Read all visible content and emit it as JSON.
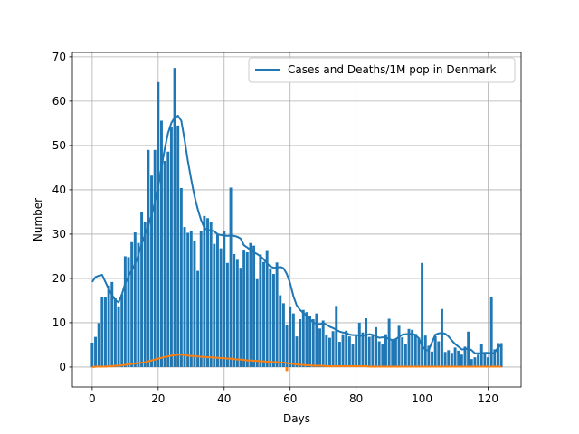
{
  "chart_data": {
    "type": "bar",
    "xlabel": "Days",
    "ylabel": "Number",
    "xlim": [
      -6,
      130
    ],
    "ylim": [
      -4.5,
      71
    ],
    "xticks": [
      0,
      20,
      40,
      60,
      80,
      100,
      120
    ],
    "yticks": [
      0,
      10,
      20,
      30,
      40,
      50,
      60,
      70
    ],
    "grid": true,
    "legend": {
      "position": "top-right",
      "entries": [
        "Cases and Deaths/1M pop in Denmark"
      ]
    },
    "colors": {
      "cases": "#1f77b4",
      "deaths": "#ff7f0e",
      "grid": "#b0b0b0"
    },
    "x": [
      0,
      1,
      2,
      3,
      4,
      5,
      6,
      7,
      8,
      9,
      10,
      11,
      12,
      13,
      14,
      15,
      16,
      17,
      18,
      19,
      20,
      21,
      22,
      23,
      24,
      25,
      26,
      27,
      28,
      29,
      30,
      31,
      32,
      33,
      34,
      35,
      36,
      37,
      38,
      39,
      40,
      41,
      42,
      43,
      44,
      45,
      46,
      47,
      48,
      49,
      50,
      51,
      52,
      53,
      54,
      55,
      56,
      57,
      58,
      59,
      60,
      61,
      62,
      63,
      64,
      65,
      66,
      67,
      68,
      69,
      70,
      71,
      72,
      73,
      74,
      75,
      76,
      77,
      78,
      79,
      80,
      81,
      82,
      83,
      84,
      85,
      86,
      87,
      88,
      89,
      90,
      91,
      92,
      93,
      94,
      95,
      96,
      97,
      98,
      99,
      100,
      101,
      102,
      103,
      104,
      105,
      106,
      107,
      108,
      109,
      110,
      111,
      112,
      113,
      114,
      115,
      116,
      117,
      118,
      119,
      120,
      121,
      122,
      123,
      124
    ],
    "series": [
      {
        "kind": "bar",
        "values": [
          5.5,
          6.8,
          9.9,
          15.9,
          15.7,
          18.4,
          19.2,
          15.5,
          13.7,
          16.4,
          25.0,
          24.8,
          28.2,
          30.4,
          28.0,
          35.0,
          32.8,
          49.0,
          43.2,
          49.0,
          64.3,
          55.6,
          46.5,
          48.6,
          54.1,
          67.5,
          54.5,
          40.4,
          31.6,
          30.3,
          30.7,
          28.4,
          21.7,
          30.8,
          34.1,
          33.6,
          32.7,
          27.8,
          29.9,
          26.8,
          30.7,
          23.5,
          40.5,
          25.5,
          24.2,
          22.4,
          26.3,
          25.9,
          28.0,
          27.4,
          19.8,
          25.4,
          23.7,
          26.2,
          22.3,
          21.0,
          23.6,
          16.2,
          14.4,
          9.4,
          13.7,
          12.1,
          6.9,
          10.8,
          12.9,
          12.4,
          11.6,
          10.8,
          12.1,
          8.7,
          10.5,
          7.2,
          6.6,
          8.1,
          13.8,
          5.7,
          7.4,
          8.2,
          6.9,
          5.2,
          7.0,
          10.0,
          7.8,
          11.0,
          6.8,
          7.1,
          9.0,
          5.8,
          5.1,
          7.4,
          10.9,
          6.0,
          6.3,
          9.3,
          6.7,
          5.2,
          8.6,
          8.4,
          7.5,
          6.6,
          23.5,
          7.1,
          4.8,
          3.5,
          7.0,
          5.8,
          13.1,
          3.4,
          3.8,
          3.2,
          4.4,
          3.7,
          2.8,
          4.6,
          8.0,
          1.8,
          2.2,
          2.8,
          5.2,
          2.9,
          2.2,
          15.8,
          4.0,
          5.4,
          5.4
        ]
      },
      {
        "kind": "line",
        "values": [
          19.2,
          20.3,
          20.6,
          20.8,
          19.2,
          17.6,
          16.3,
          15.1,
          14.6,
          16.4,
          18.9,
          20.5,
          21.8,
          23.3,
          25.3,
          27.8,
          29.9,
          31.8,
          34.3,
          37.2,
          40.6,
          45.1,
          49.3,
          52.8,
          55.1,
          56.3,
          56.7,
          55.6,
          51.3,
          46.5,
          42.4,
          38.6,
          35.6,
          33.2,
          31.4,
          30.9,
          30.9,
          30.6,
          30.0,
          29.8,
          29.7,
          29.6,
          29.7,
          29.6,
          29.4,
          29.0,
          27.5,
          27.0,
          26.4,
          25.9,
          25.5,
          25.0,
          24.3,
          23.4,
          22.7,
          22.4,
          22.4,
          22.6,
          22.3,
          21.0,
          18.9,
          16.0,
          13.9,
          12.9,
          12.2,
          11.6,
          10.8,
          10.1,
          9.7,
          9.7,
          9.9,
          9.6,
          9.1,
          8.8,
          8.4,
          8.0,
          7.8,
          7.7,
          7.3,
          7.2,
          7.2,
          7.1,
          7.0,
          7.2,
          7.4,
          7.3,
          6.9,
          6.6,
          6.7,
          6.7,
          6.3,
          6.1,
          6.3,
          6.8,
          7.3,
          7.4,
          7.4,
          7.5,
          7.2,
          6.5,
          4.8,
          3.8,
          3.8,
          5.6,
          7.3,
          7.6,
          7.7,
          7.5,
          6.9,
          6.0,
          5.2,
          4.6,
          4.0,
          4.0,
          4.2,
          3.8,
          3.1,
          3.1,
          3.1,
          3.2,
          3.2,
          3.1,
          3.2,
          4.4,
          5.1
        ]
      },
      {
        "kind": "bar",
        "values": [
          0.0,
          0.0,
          0.0,
          0.2,
          0.0,
          0.3,
          0.0,
          0.2,
          0.2,
          0.5,
          0.3,
          1.0,
          0.7,
          0.9,
          0.7,
          1.2,
          0.9,
          1.4,
          1.2,
          2.0,
          1.9,
          3.1,
          2.2,
          2.5,
          2.9,
          2.5,
          3.1,
          2.8,
          2.9,
          2.5,
          2.3,
          2.9,
          2.1,
          2.4,
          2.7,
          2.1,
          2.2,
          1.9,
          1.9,
          2.3,
          1.8,
          1.7,
          2.4,
          1.8,
          1.5,
          1.6,
          1.4,
          1.5,
          1.2,
          1.4,
          1.2,
          1.3,
          1.0,
          1.3,
          1.2,
          1.5,
          0.8,
          1.1,
          1.0,
          -0.9,
          0.9,
          0.7,
          0.5,
          0.4,
          0.6,
          0.3,
          0.4,
          0.3,
          0.4,
          0.2,
          0.3,
          0.2,
          0.2,
          0.1,
          0.3,
          0.2,
          0.2,
          0.1,
          0.2,
          0.1,
          0.2,
          0.3,
          0.1,
          0.2,
          0.1,
          0.2,
          0.1,
          0.1,
          0.2,
          0.1,
          0.1,
          0.1,
          0.1,
          0.2,
          0.0,
          0.1,
          0.1,
          0.0,
          0.1,
          0.1,
          0.0,
          0.1,
          0.0,
          0.0,
          0.1,
          0.0,
          0.0,
          0.1,
          0.0,
          0.0,
          0.0,
          0.1,
          0.0,
          0.0,
          0.0,
          0.0,
          0.1,
          0.0,
          0.0,
          0.0,
          0.0,
          0.0,
          0.0,
          0.0,
          0.0
        ]
      },
      {
        "kind": "line",
        "values": [
          0.0,
          0.1,
          0.1,
          0.1,
          0.1,
          0.2,
          0.2,
          0.3,
          0.3,
          0.4,
          0.5,
          0.6,
          0.7,
          0.8,
          0.9,
          1.0,
          1.1,
          1.3,
          1.5,
          1.7,
          1.9,
          2.1,
          2.3,
          2.4,
          2.6,
          2.7,
          2.8,
          2.8,
          2.7,
          2.6,
          2.5,
          2.5,
          2.4,
          2.3,
          2.3,
          2.2,
          2.2,
          2.1,
          2.1,
          2.0,
          2.0,
          1.9,
          1.9,
          1.8,
          1.7,
          1.7,
          1.6,
          1.5,
          1.5,
          1.4,
          1.4,
          1.3,
          1.3,
          1.2,
          1.2,
          1.1,
          1.1,
          1.0,
          1.0,
          0.9,
          0.8,
          0.7,
          0.6,
          0.5,
          0.5,
          0.4,
          0.4,
          0.3,
          0.3,
          0.3,
          0.3,
          0.2,
          0.2,
          0.2,
          0.2,
          0.2,
          0.2,
          0.2,
          0.2,
          0.2,
          0.2,
          0.2,
          0.2,
          0.2,
          0.1,
          0.1,
          0.1,
          0.1,
          0.1,
          0.1,
          0.1,
          0.1,
          0.1,
          0.1,
          0.1,
          0.1,
          0.1,
          0.1,
          0.1,
          0.1,
          0.1,
          0.1,
          0.1,
          0.1,
          0.1,
          0.1,
          0.1,
          0.1,
          0.1,
          0.1,
          0.1,
          0.1,
          0.1,
          0.1,
          0.1,
          0.1,
          0.1,
          0.1,
          0.1,
          0.1,
          0.1,
          0.1,
          0.1,
          0.1,
          0.1
        ]
      }
    ]
  }
}
